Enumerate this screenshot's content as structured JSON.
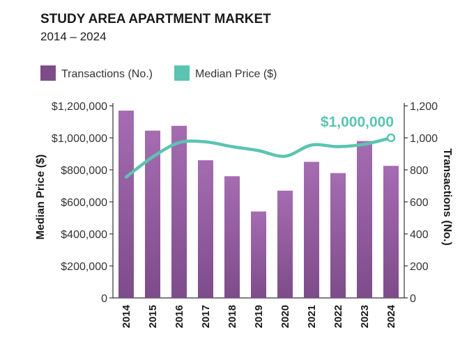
{
  "chart_data": {
    "type": "bar",
    "title": "STUDY AREA APARTMENT MARKET",
    "subtitle": "2014 – 2024",
    "categories": [
      "2014",
      "2015",
      "2016",
      "2017",
      "2018",
      "2019",
      "2020",
      "2021",
      "2022",
      "2023",
      "2024"
    ],
    "series": [
      {
        "name": "Transactions (No.)",
        "type": "bar",
        "axis": "right",
        "color": "#7e4c8a",
        "color_light": "#a56cb1",
        "values": [
          1170,
          1045,
          1075,
          860,
          760,
          540,
          670,
          850,
          780,
          980,
          825
        ]
      },
      {
        "name": "Median Price ($)",
        "type": "line",
        "axis": "left",
        "color": "#5bc4b0",
        "values": [
          755000,
          880000,
          970000,
          975000,
          945000,
          920000,
          885000,
          955000,
          945000,
          960000,
          1000000
        ]
      }
    ],
    "ylabel_left": "Median Price ($)",
    "ylabel_right": "Transactions (No.)",
    "ylim_left": [
      0,
      1200000
    ],
    "ylim_right": [
      0,
      1200
    ],
    "yticks_left": [
      "0",
      "$200,000",
      "$400,000",
      "$600,000",
      "$800,000",
      "$1,000,000",
      "$1,200,000"
    ],
    "yticks_right": [
      "0",
      "200",
      "400",
      "600",
      "800",
      "1,000",
      "1,200"
    ],
    "annotation": {
      "text": "$1,000,000",
      "category": "2024",
      "color": "#5bc4b0"
    },
    "legend_position": "top-left"
  }
}
